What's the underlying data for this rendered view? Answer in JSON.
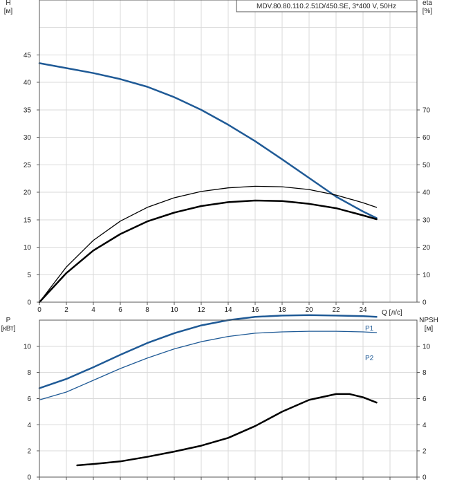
{
  "colors": {
    "blue": "#1f5a96",
    "black": "#000000",
    "grid": "#d9d9d9",
    "frame": "#555555"
  },
  "chart_data": [
    {
      "type": "line",
      "title": "MDV.80.80.110.2.51D/450.SE, 3*400 V, 50Hz",
      "xlabel": "Q [л/с]",
      "ylabel": {
        "name": "H",
        "unit": "[м]"
      },
      "y2label": {
        "name": "eta",
        "unit": "[%]"
      },
      "xlim": [
        0,
        28
      ],
      "ylim": [
        0,
        55
      ],
      "y2lim": [
        0,
        110
      ],
      "xticks": [
        "0",
        "2",
        "4",
        "6",
        "8",
        "10",
        "12",
        "14",
        "16",
        "18",
        "20",
        "22",
        "24"
      ],
      "yticks": [
        "0",
        "5",
        "10",
        "15",
        "20",
        "25",
        "30",
        "35",
        "40",
        "45"
      ],
      "y2ticks": [
        "0",
        "10",
        "20",
        "30",
        "40",
        "50",
        "60",
        "70"
      ],
      "grid": true,
      "series": [
        {
          "key": "H",
          "axis": "left",
          "color": "#1f5a96",
          "width": 2.5,
          "x": [
            0,
            2,
            4,
            6,
            8,
            10,
            12,
            14,
            16,
            18,
            20,
            22,
            24,
            25
          ],
          "y": [
            43.5,
            42.6,
            41.7,
            40.6,
            39.2,
            37.3,
            35.0,
            32.3,
            29.3,
            26.0,
            22.6,
            19.2,
            16.5,
            15.3
          ]
        },
        {
          "key": "eta",
          "axis": "right",
          "color": "#000000",
          "width": 1.3,
          "x": [
            0,
            2,
            4,
            6,
            8,
            10,
            12,
            14,
            16,
            18,
            20,
            22,
            24,
            25
          ],
          "y": [
            0,
            12.8,
            22.5,
            29.5,
            34.5,
            38.0,
            40.3,
            41.6,
            42.2,
            42.0,
            41.0,
            39.0,
            36.2,
            34.5
          ]
        },
        {
          "key": "eta_total",
          "axis": "left",
          "color": "#000000",
          "width": 2.5,
          "x": [
            0,
            2,
            4,
            6,
            8,
            10,
            12,
            14,
            16,
            18,
            20,
            22,
            24,
            25
          ],
          "y": [
            0,
            5.3,
            9.4,
            12.4,
            14.7,
            16.3,
            17.5,
            18.2,
            18.5,
            18.4,
            17.9,
            17.1,
            15.8,
            15.1
          ]
        }
      ]
    },
    {
      "type": "line",
      "ylabel": {
        "name": "P",
        "unit": "[кВт]"
      },
      "y2label": {
        "name": "NPSH",
        "unit": "[м]"
      },
      "xlim": [
        0,
        28
      ],
      "ylim": [
        0,
        12
      ],
      "y2lim": [
        0,
        12
      ],
      "yticks": [
        "0",
        "2",
        "4",
        "6",
        "8",
        "10"
      ],
      "y2ticks": [
        "0",
        "2",
        "4",
        "6",
        "8",
        "10"
      ],
      "grid": true,
      "series": [
        {
          "name": "P1",
          "axis": "left",
          "color": "#1f5a96",
          "width": 2.5,
          "x": [
            0,
            2,
            4,
            6,
            8,
            10,
            12,
            14,
            16,
            18,
            20,
            22,
            24,
            25
          ],
          "y": [
            6.8,
            7.5,
            8.4,
            9.35,
            10.25,
            11.0,
            11.6,
            12.0,
            12.25,
            12.35,
            12.38,
            12.35,
            12.3,
            12.25
          ]
        },
        {
          "name": "P2",
          "axis": "left",
          "color": "#1f5a96",
          "width": 1.3,
          "x": [
            0,
            2,
            4,
            6,
            8,
            10,
            12,
            14,
            16,
            18,
            20,
            22,
            24,
            25
          ],
          "y": [
            5.9,
            6.5,
            7.4,
            8.3,
            9.1,
            9.8,
            10.35,
            10.75,
            11.0,
            11.1,
            11.15,
            11.15,
            11.1,
            11.05
          ]
        },
        {
          "key": "NPSH",
          "axis": "right",
          "color": "#000000",
          "width": 2.5,
          "x": [
            2.8,
            4,
            6,
            8,
            10,
            12,
            14,
            16,
            18,
            20,
            22,
            23,
            24,
            25
          ],
          "y": [
            0.9,
            1.0,
            1.2,
            1.55,
            1.95,
            2.4,
            3.0,
            3.9,
            5.0,
            5.9,
            6.35,
            6.35,
            6.1,
            5.7
          ]
        }
      ]
    }
  ]
}
